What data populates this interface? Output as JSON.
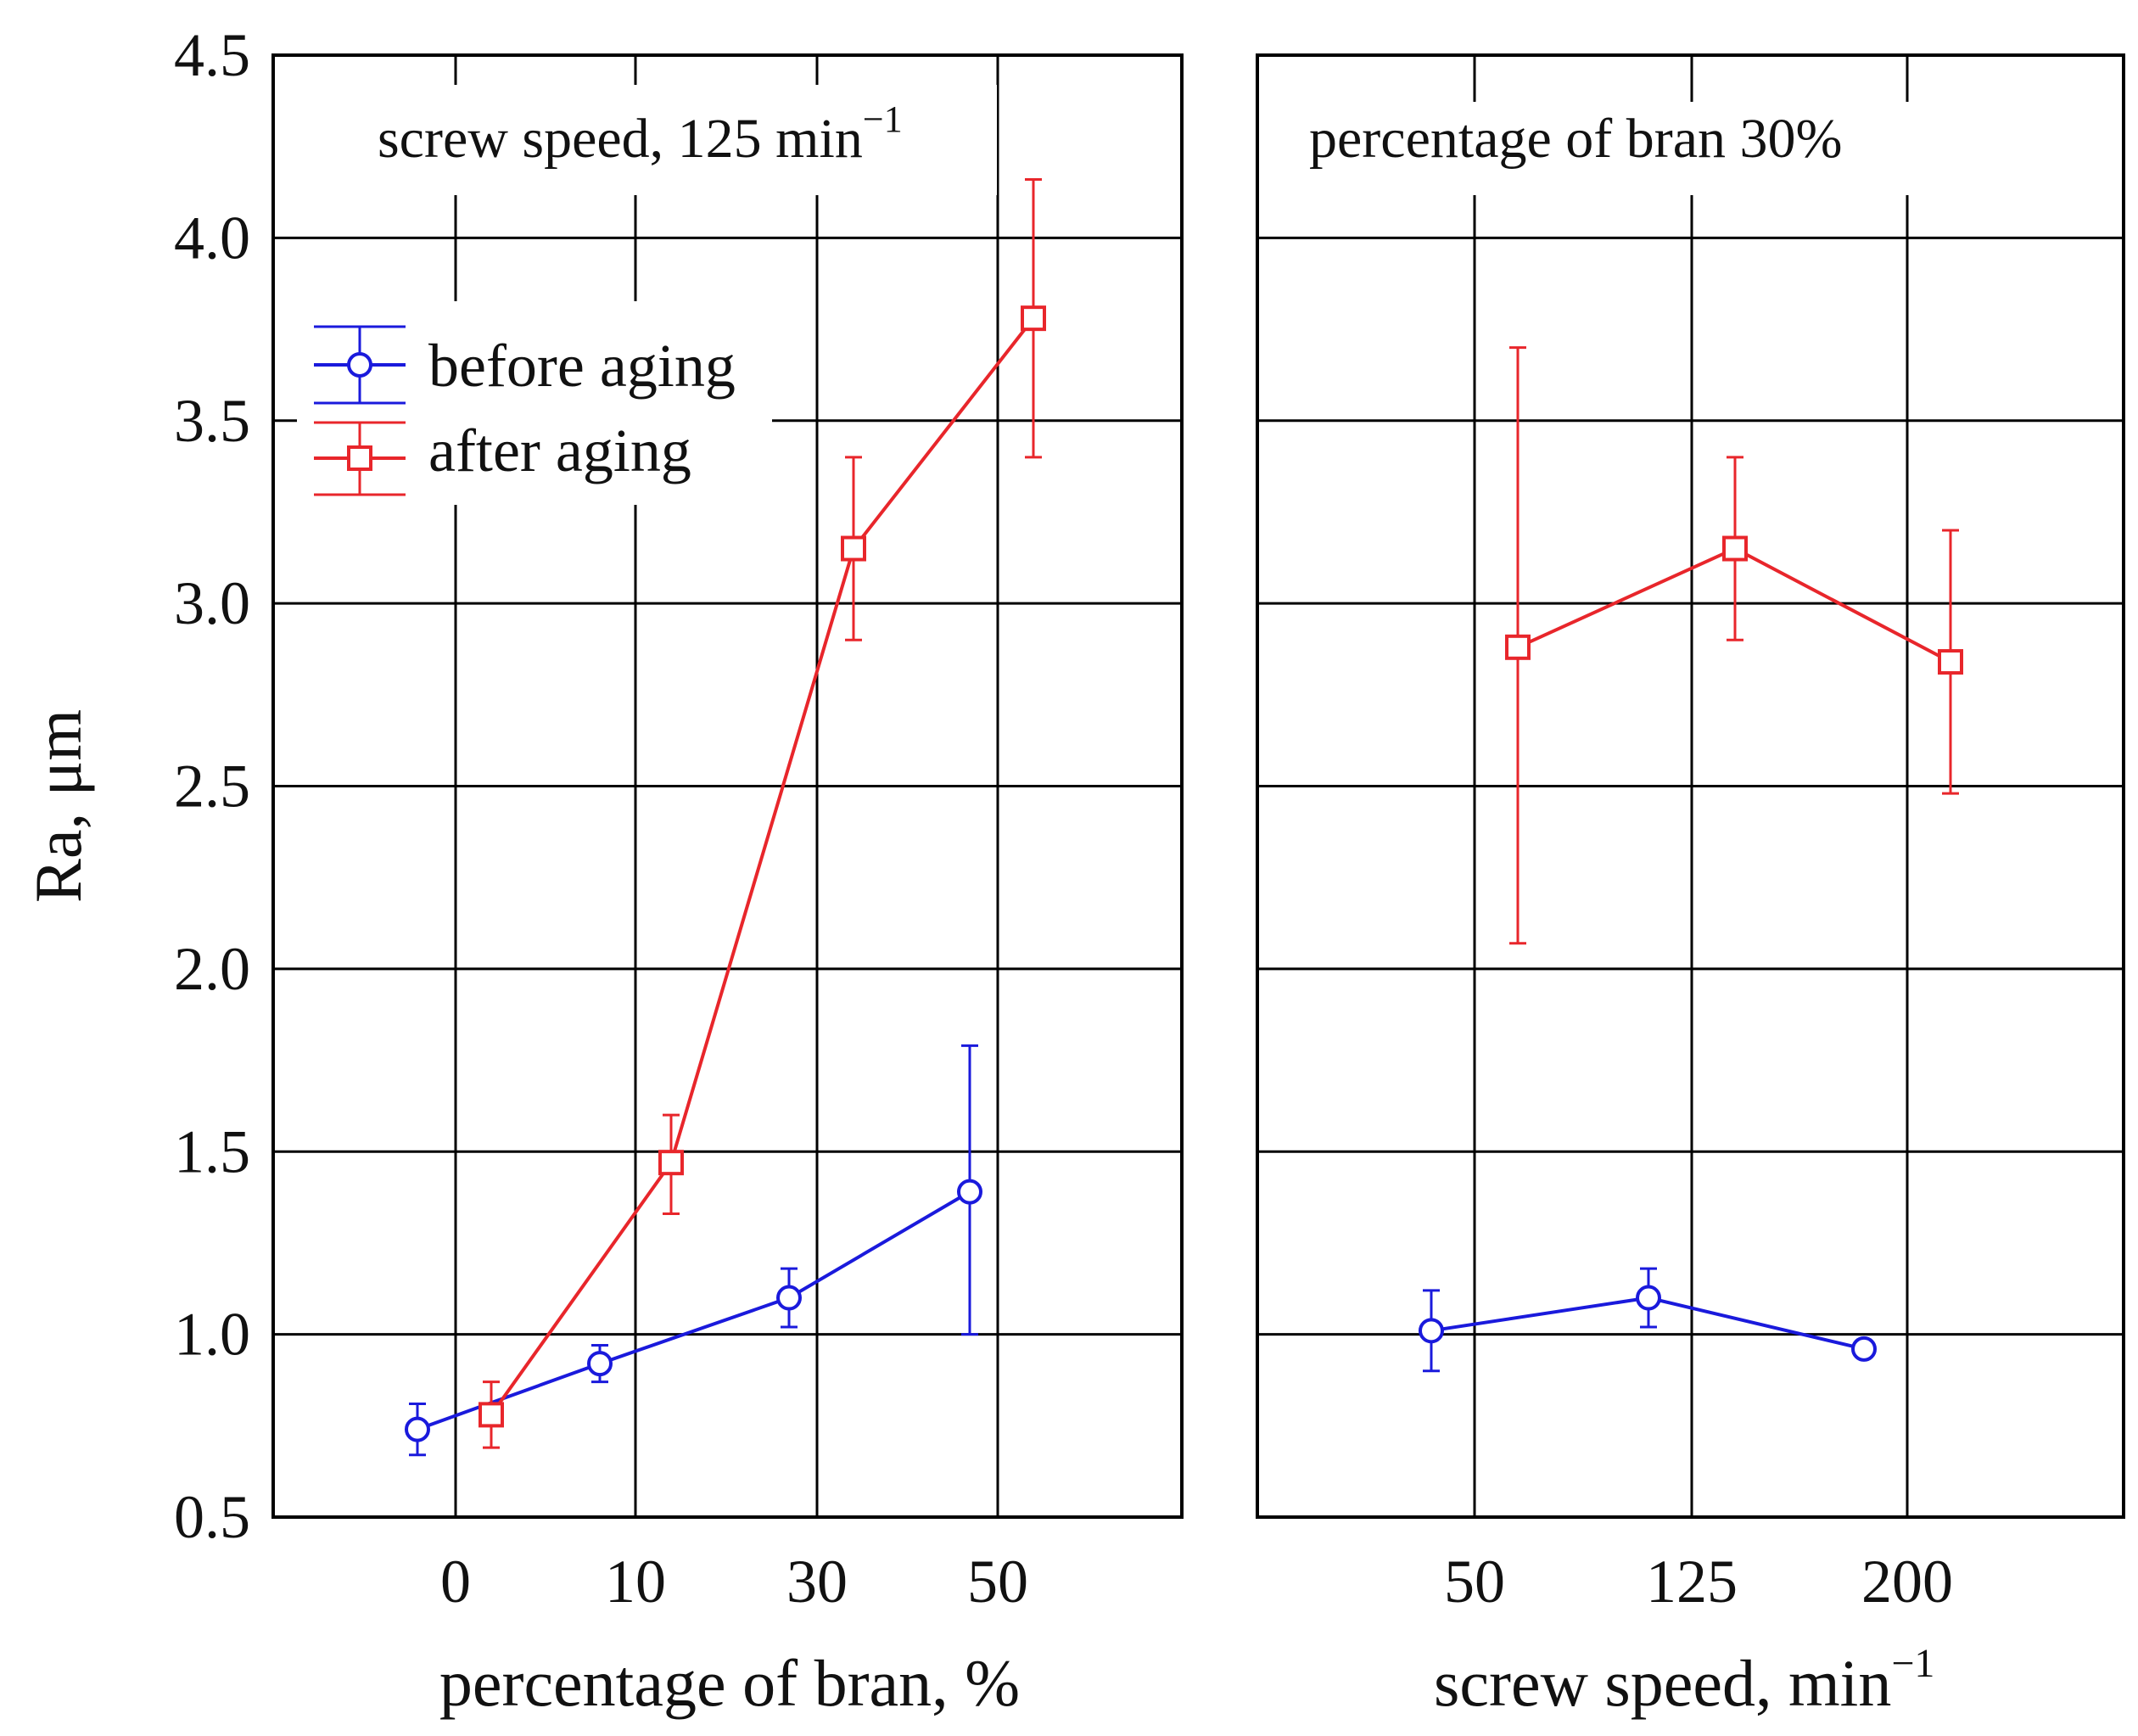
{
  "chart_data": {
    "type": "line",
    "ylabel": "Ra, μm",
    "ylim": [
      0.5,
      4.5
    ],
    "yticks": [
      "0.5",
      "1.0",
      "1.5",
      "2.0",
      "2.5",
      "3.0",
      "3.5",
      "4.0",
      "4.5"
    ],
    "grid": true,
    "legend": {
      "placement": "top-left",
      "entries": [
        {
          "name": "before aging",
          "color": "#1a1adc",
          "marker": "circle"
        },
        {
          "name": "after aging",
          "color": "#e8262b",
          "marker": "square"
        }
      ]
    },
    "panels": [
      {
        "annotation": "screw speed, 125 min",
        "annotation_sup": "−1",
        "xlabel": "percentage of bran, %",
        "xlabel_sup": "",
        "categories": [
          "0",
          "10",
          "30",
          "50"
        ],
        "series": [
          {
            "name": "before aging",
            "values": [
              0.74,
              0.92,
              1.1,
              1.39
            ],
            "err_low": [
              0.67,
              0.87,
              1.02,
              1.0
            ],
            "err_high": [
              0.81,
              0.97,
              1.18,
              1.79
            ]
          },
          {
            "name": "after aging",
            "values": [
              0.78,
              1.47,
              3.15,
              3.78
            ],
            "err_low": [
              0.69,
              1.33,
              2.9,
              3.4
            ],
            "err_high": [
              0.87,
              1.6,
              3.4,
              4.16
            ]
          }
        ]
      },
      {
        "annotation": "percentage of bran 30%",
        "annotation_sup": "",
        "xlabel": "screw speed, min",
        "xlabel_sup": "−1",
        "categories": [
          "50",
          "125",
          "200"
        ],
        "series": [
          {
            "name": "before aging",
            "values": [
              1.01,
              1.1,
              0.96
            ],
            "err_low": [
              0.9,
              1.02,
              0.96
            ],
            "err_high": [
              1.12,
              1.18,
              0.96
            ]
          },
          {
            "name": "after aging",
            "values": [
              2.88,
              3.15,
              2.84
            ],
            "err_low": [
              2.07,
              2.9,
              2.48
            ],
            "err_high": [
              3.7,
              3.4,
              3.2
            ]
          }
        ]
      }
    ]
  }
}
